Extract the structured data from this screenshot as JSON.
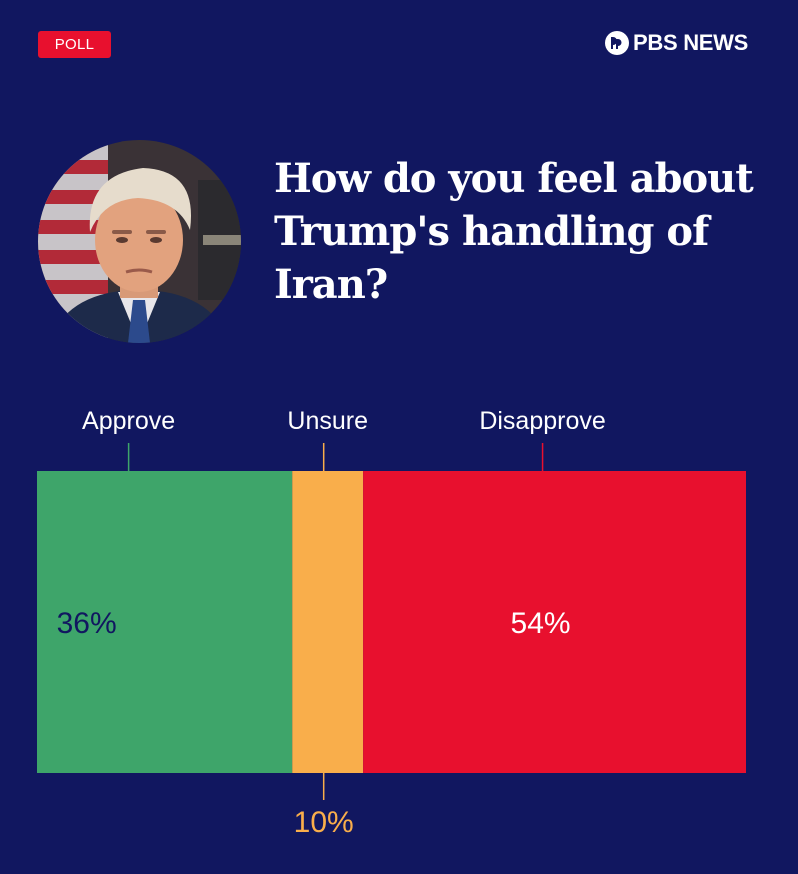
{
  "header": {
    "badge": "POLL",
    "brand": "PBS NEWS",
    "brand_icon": "pbs-heads-logo"
  },
  "question": "How do you feel about Trump's handling of Iran?",
  "colors": {
    "background": "#111760",
    "approve": "#3ea56a",
    "unsure": "#f9ae4b",
    "disapprove": "#e8102e",
    "badge": "#e8102e"
  },
  "chart_data": {
    "type": "bar",
    "orientation": "stacked-horizontal",
    "unit": "%",
    "xlim": [
      0,
      100
    ],
    "categories": [
      "Approve",
      "Unsure",
      "Disapprove"
    ],
    "values": [
      36,
      10,
      54
    ],
    "value_labels": [
      "36%",
      "10%",
      "54%"
    ],
    "colors": [
      "#3ea56a",
      "#f9ae4b",
      "#e8102e"
    ],
    "value_label_colors": [
      "#111760",
      "#f9ae4b",
      "#ffffff"
    ],
    "grid": false,
    "legend": "none"
  }
}
